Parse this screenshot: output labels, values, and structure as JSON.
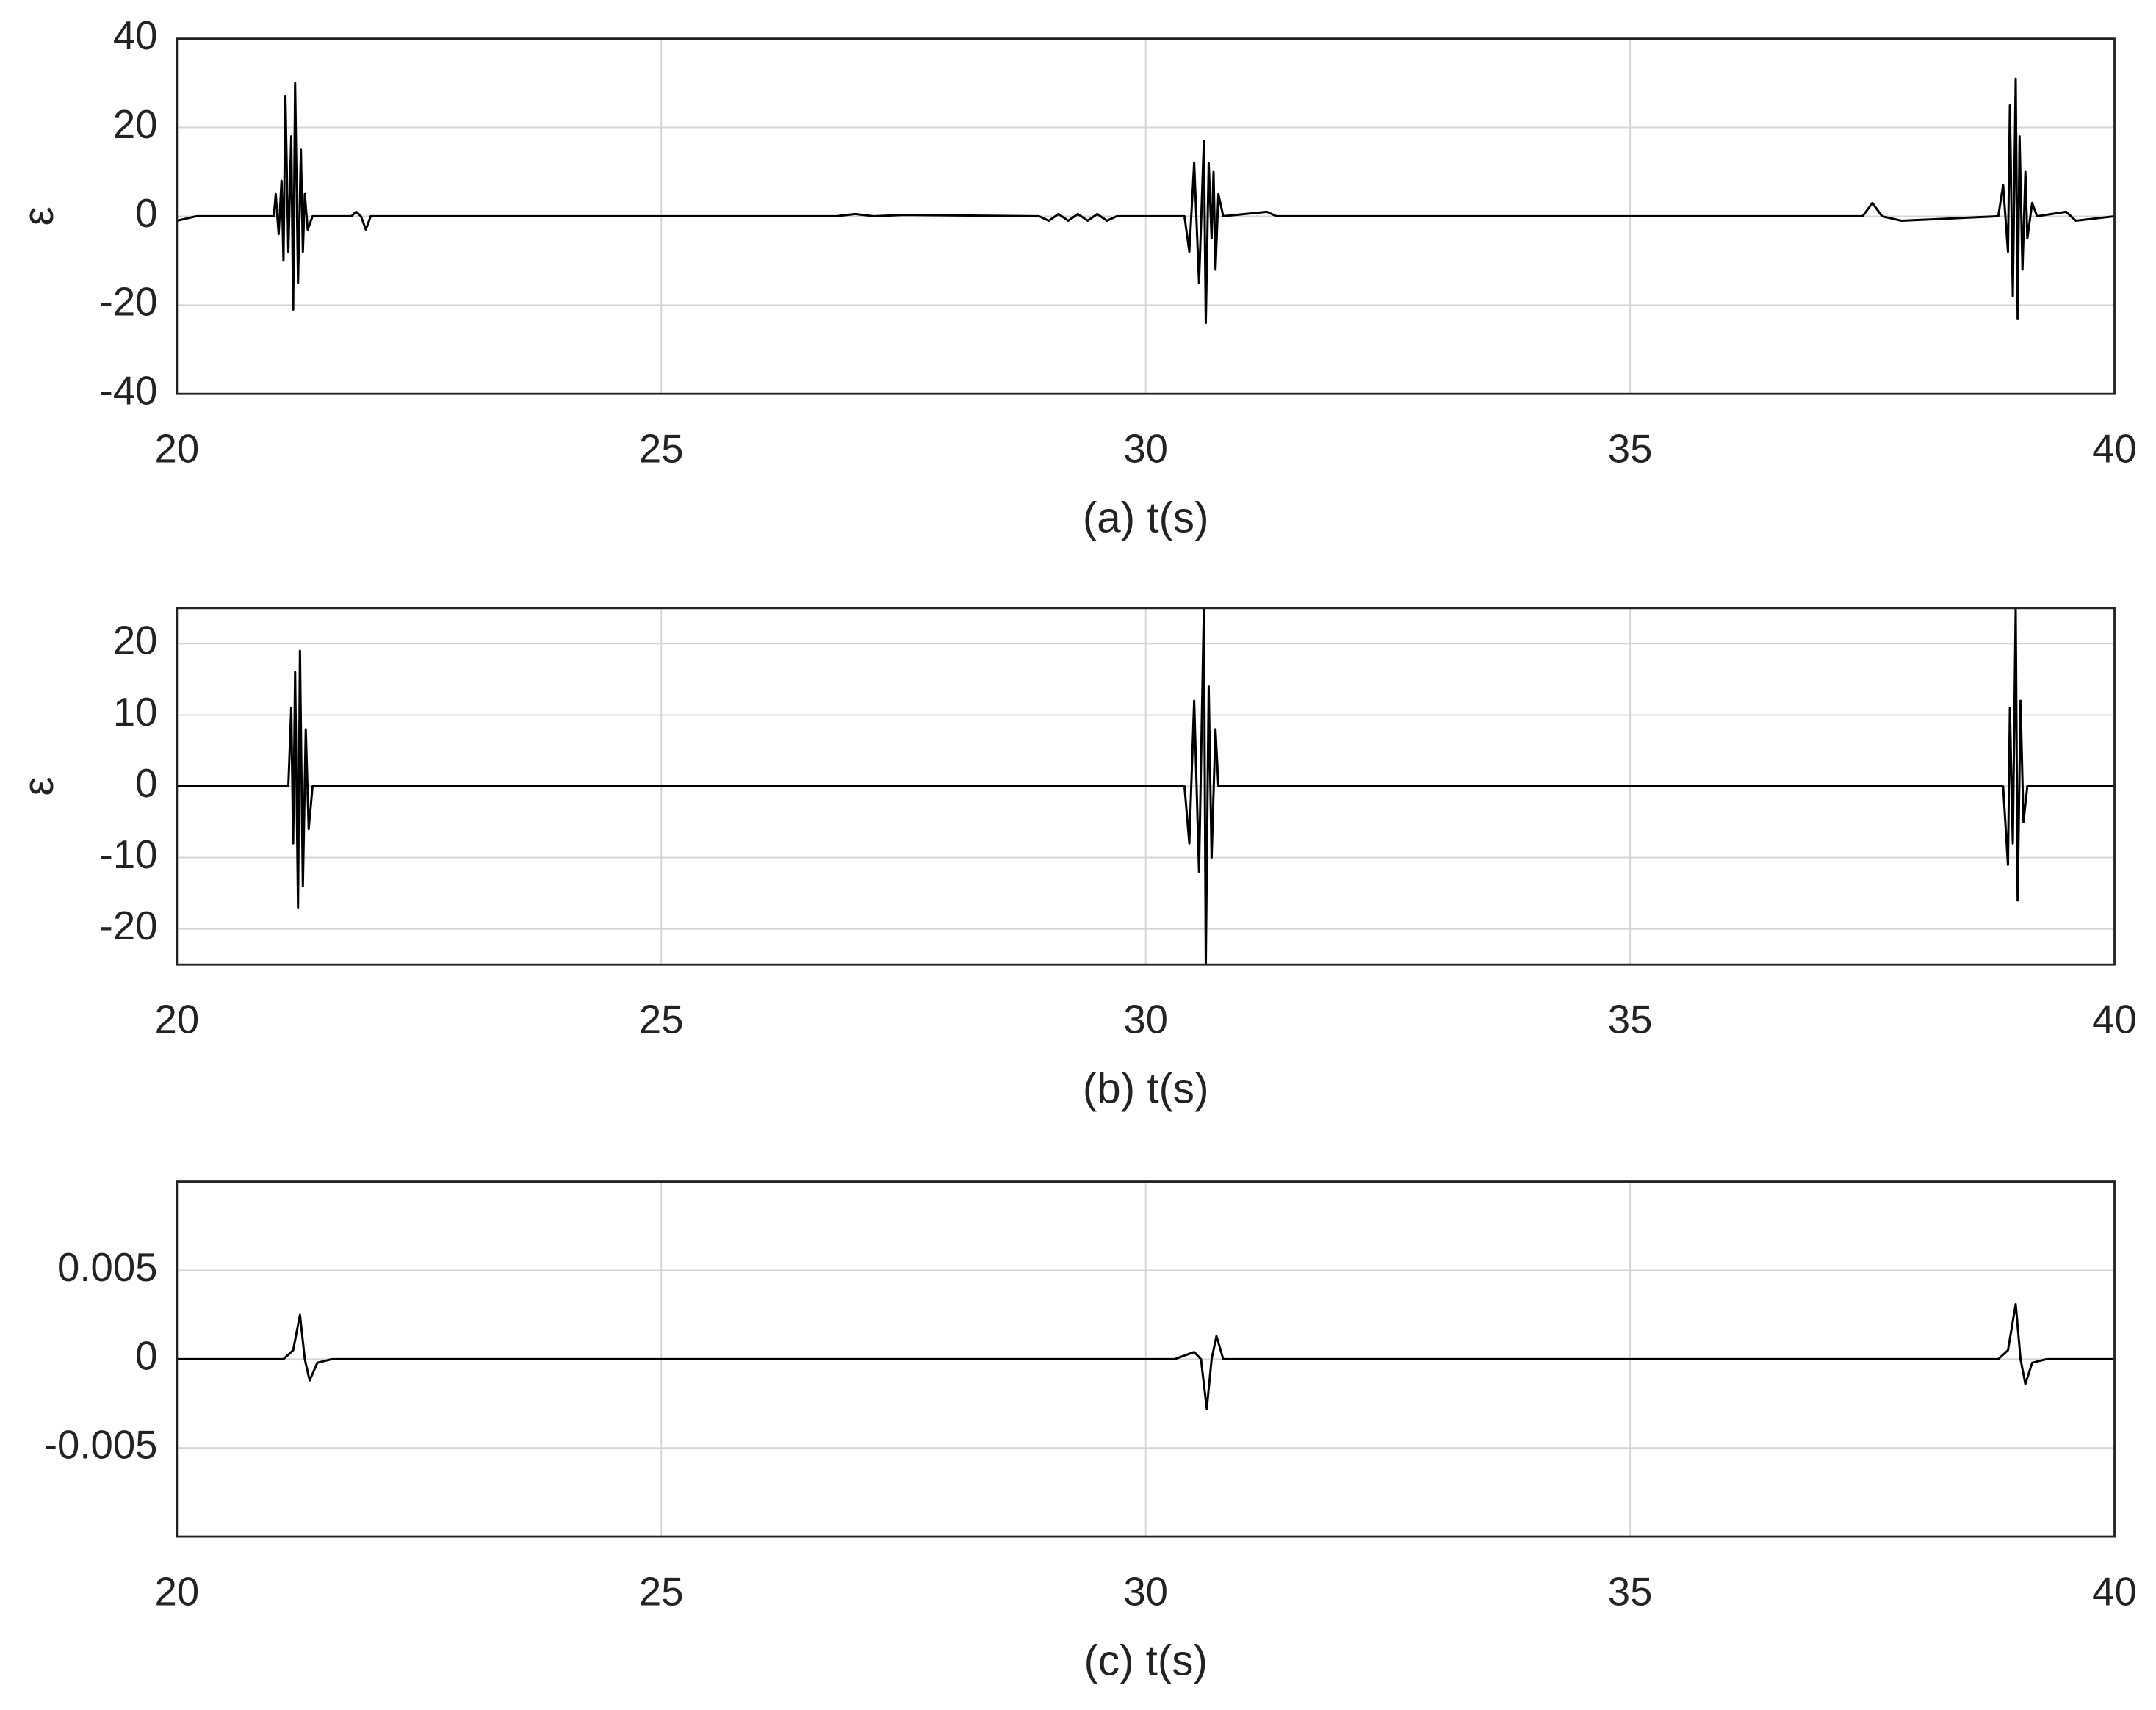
{
  "chart_data": [
    {
      "type": "line",
      "xlabel": "(a)  t(s)",
      "ylabel": "ε",
      "xlim": [
        20,
        40
      ],
      "xticks": [
        20,
        25,
        30,
        35,
        40
      ],
      "ylim": [
        -40,
        40
      ],
      "yticks": [
        -40,
        -20,
        0,
        20,
        40
      ],
      "grid": true,
      "color": "#000000",
      "x": [
        20,
        20.2,
        21.0,
        21.02,
        21.05,
        21.08,
        21.1,
        21.12,
        21.15,
        21.18,
        21.2,
        21.22,
        21.25,
        21.28,
        21.3,
        21.32,
        21.35,
        21.4,
        21.8,
        21.85,
        21.9,
        21.95,
        22.0,
        26.8,
        27.0,
        27.2,
        27.5,
        28.9,
        29.0,
        29.1,
        29.2,
        29.3,
        29.4,
        29.5,
        29.6,
        29.7,
        30.4,
        30.45,
        30.5,
        30.55,
        30.6,
        30.62,
        30.65,
        30.68,
        30.7,
        30.72,
        30.75,
        30.8,
        31.25,
        31.35,
        37.4,
        37.5,
        37.6,
        37.8,
        38.8,
        38.85,
        38.9,
        38.92,
        38.95,
        38.98,
        39.0,
        39.02,
        39.05,
        39.08,
        39.1,
        39.15,
        39.2,
        39.5,
        39.6,
        40
      ],
      "values": [
        -1,
        0,
        0,
        5,
        -4,
        8,
        -10,
        27,
        -8,
        18,
        -21,
        30,
        -15,
        15,
        -8,
        5,
        -3,
        0,
        0,
        1,
        0,
        -3,
        0,
        0,
        0.5,
        0,
        0.3,
        0,
        -1,
        0.5,
        -1,
        0.5,
        -1,
        0.5,
        -1,
        0,
        0,
        -8,
        12,
        -15,
        17,
        -24,
        12,
        -5,
        10,
        -12,
        5,
        0,
        1,
        0,
        0,
        3,
        0,
        -1,
        0,
        7,
        -8,
        25,
        -18,
        31,
        -23,
        18,
        -12,
        10,
        -5,
        3,
        0,
        1,
        -1,
        0
      ]
    },
    {
      "type": "line",
      "xlabel": "(b)   t(s)",
      "ylabel": "ε",
      "xlim": [
        20,
        40
      ],
      "xticks": [
        20,
        25,
        30,
        35,
        40
      ],
      "ylim": [
        -25,
        25
      ],
      "yticks": [
        -20,
        -10,
        0,
        10,
        20
      ],
      "grid": true,
      "color": "#000000",
      "x": [
        20,
        21.15,
        21.18,
        21.2,
        21.22,
        21.25,
        21.27,
        21.3,
        21.33,
        21.36,
        21.4,
        30.4,
        30.45,
        30.5,
        30.55,
        30.6,
        30.62,
        30.65,
        30.68,
        30.72,
        30.75,
        38.85,
        38.9,
        38.92,
        38.95,
        38.98,
        39.0,
        39.03,
        39.06,
        39.1,
        40
      ],
      "values": [
        0,
        0,
        11,
        -8,
        16,
        -17,
        19,
        -14,
        8,
        -6,
        0,
        0,
        -8,
        12,
        -12,
        25,
        -25,
        14,
        -10,
        8,
        0,
        0,
        -11,
        11,
        -8,
        25,
        -16,
        12,
        -5,
        0,
        0
      ]
    },
    {
      "type": "line",
      "xlabel": "(c)   t(s)",
      "xlim": [
        20,
        40
      ],
      "xticks": [
        20,
        25,
        30,
        35,
        40
      ],
      "ylim": [
        -0.01,
        0.01
      ],
      "yticks": [
        -0.005,
        0,
        0.005
      ],
      "grid": true,
      "color": "#000000",
      "x": [
        20,
        21.1,
        21.2,
        21.27,
        21.32,
        21.37,
        21.45,
        21.6,
        30.3,
        30.5,
        30.57,
        30.63,
        30.68,
        30.73,
        30.8,
        38.8,
        38.9,
        38.98,
        39.03,
        39.08,
        39.15,
        39.3,
        40
      ],
      "values": [
        0,
        0,
        0.0005,
        0.0025,
        0,
        -0.0012,
        -0.0002,
        0,
        0,
        0.0004,
        0,
        -0.0028,
        0,
        0.0013,
        0,
        0,
        0.0005,
        0.0031,
        0,
        -0.0014,
        -0.0002,
        0,
        0
      ]
    }
  ]
}
